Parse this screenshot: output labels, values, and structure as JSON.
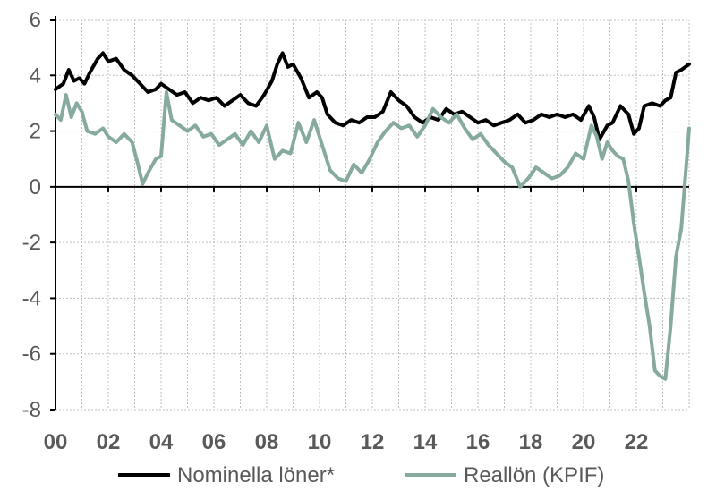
{
  "chart_data": {
    "type": "line",
    "x_tick_labels": [
      "00",
      "02",
      "04",
      "06",
      "08",
      "10",
      "12",
      "14",
      "16",
      "18",
      "20",
      "22"
    ],
    "y_tick_labels": [
      "6",
      "4",
      "2",
      "0",
      "-2",
      "-4",
      "-6",
      "-8"
    ],
    "ylim": [
      -8,
      6
    ],
    "xlim": [
      2000,
      2024
    ],
    "grid": true,
    "legend_position": "bottom",
    "series": [
      {
        "name": "Nominella löner*",
        "color": "#000000",
        "points": [
          [
            2000.0,
            3.5
          ],
          [
            2000.3,
            3.7
          ],
          [
            2000.5,
            4.2
          ],
          [
            2000.7,
            3.8
          ],
          [
            2000.9,
            3.9
          ],
          [
            2001.1,
            3.7
          ],
          [
            2001.3,
            4.1
          ],
          [
            2001.6,
            4.6
          ],
          [
            2001.8,
            4.8
          ],
          [
            2002.0,
            4.5
          ],
          [
            2002.3,
            4.6
          ],
          [
            2002.6,
            4.2
          ],
          [
            2002.9,
            4.0
          ],
          [
            2003.2,
            3.7
          ],
          [
            2003.5,
            3.4
          ],
          [
            2003.8,
            3.5
          ],
          [
            2004.0,
            3.7
          ],
          [
            2004.3,
            3.5
          ],
          [
            2004.6,
            3.3
          ],
          [
            2004.9,
            3.4
          ],
          [
            2005.2,
            3.0
          ],
          [
            2005.5,
            3.2
          ],
          [
            2005.8,
            3.1
          ],
          [
            2006.1,
            3.2
          ],
          [
            2006.4,
            2.9
          ],
          [
            2006.7,
            3.1
          ],
          [
            2007.0,
            3.3
          ],
          [
            2007.3,
            3.0
          ],
          [
            2007.6,
            2.9
          ],
          [
            2007.9,
            3.3
          ],
          [
            2008.2,
            3.8
          ],
          [
            2008.4,
            4.4
          ],
          [
            2008.6,
            4.8
          ],
          [
            2008.8,
            4.3
          ],
          [
            2009.0,
            4.4
          ],
          [
            2009.3,
            3.9
          ],
          [
            2009.6,
            3.2
          ],
          [
            2009.9,
            3.4
          ],
          [
            2010.1,
            3.2
          ],
          [
            2010.3,
            2.6
          ],
          [
            2010.6,
            2.3
          ],
          [
            2010.9,
            2.2
          ],
          [
            2011.2,
            2.4
          ],
          [
            2011.5,
            2.3
          ],
          [
            2011.8,
            2.5
          ],
          [
            2012.1,
            2.5
          ],
          [
            2012.4,
            2.7
          ],
          [
            2012.7,
            3.4
          ],
          [
            2013.0,
            3.1
          ],
          [
            2013.3,
            2.9
          ],
          [
            2013.6,
            2.5
          ],
          [
            2013.9,
            2.3
          ],
          [
            2014.2,
            2.5
          ],
          [
            2014.5,
            2.4
          ],
          [
            2014.8,
            2.8
          ],
          [
            2015.1,
            2.6
          ],
          [
            2015.4,
            2.7
          ],
          [
            2015.7,
            2.5
          ],
          [
            2016.0,
            2.3
          ],
          [
            2016.3,
            2.4
          ],
          [
            2016.6,
            2.2
          ],
          [
            2016.9,
            2.3
          ],
          [
            2017.2,
            2.4
          ],
          [
            2017.5,
            2.6
          ],
          [
            2017.8,
            2.3
          ],
          [
            2018.1,
            2.4
          ],
          [
            2018.4,
            2.6
          ],
          [
            2018.7,
            2.5
          ],
          [
            2019.0,
            2.6
          ],
          [
            2019.3,
            2.5
          ],
          [
            2019.6,
            2.6
          ],
          [
            2019.9,
            2.4
          ],
          [
            2020.2,
            2.9
          ],
          [
            2020.4,
            2.5
          ],
          [
            2020.6,
            1.7
          ],
          [
            2020.9,
            2.2
          ],
          [
            2021.1,
            2.3
          ],
          [
            2021.4,
            2.9
          ],
          [
            2021.7,
            2.6
          ],
          [
            2021.9,
            1.9
          ],
          [
            2022.1,
            2.1
          ],
          [
            2022.3,
            2.9
          ],
          [
            2022.6,
            3.0
          ],
          [
            2022.9,
            2.9
          ],
          [
            2023.1,
            3.1
          ],
          [
            2023.3,
            3.2
          ],
          [
            2023.5,
            4.1
          ],
          [
            2023.7,
            4.2
          ],
          [
            2024.0,
            4.4
          ]
        ]
      },
      {
        "name": "Reallön (KPIF)",
        "color": "#86a9a0",
        "points": [
          [
            2000.0,
            2.6
          ],
          [
            2000.2,
            2.4
          ],
          [
            2000.4,
            3.3
          ],
          [
            2000.6,
            2.5
          ],
          [
            2000.8,
            3.0
          ],
          [
            2001.0,
            2.7
          ],
          [
            2001.2,
            2.0
          ],
          [
            2001.5,
            1.9
          ],
          [
            2001.8,
            2.1
          ],
          [
            2002.0,
            1.8
          ],
          [
            2002.3,
            1.6
          ],
          [
            2002.6,
            1.9
          ],
          [
            2002.9,
            1.6
          ],
          [
            2003.1,
            0.9
          ],
          [
            2003.3,
            0.1
          ],
          [
            2003.5,
            0.5
          ],
          [
            2003.8,
            1.0
          ],
          [
            2004.0,
            1.1
          ],
          [
            2004.2,
            3.4
          ],
          [
            2004.4,
            2.4
          ],
          [
            2004.7,
            2.2
          ],
          [
            2005.0,
            2.0
          ],
          [
            2005.3,
            2.2
          ],
          [
            2005.6,
            1.8
          ],
          [
            2005.9,
            1.9
          ],
          [
            2006.2,
            1.5
          ],
          [
            2006.5,
            1.7
          ],
          [
            2006.8,
            1.9
          ],
          [
            2007.1,
            1.5
          ],
          [
            2007.4,
            2.0
          ],
          [
            2007.7,
            1.6
          ],
          [
            2008.0,
            2.2
          ],
          [
            2008.3,
            1.0
          ],
          [
            2008.6,
            1.3
          ],
          [
            2008.9,
            1.2
          ],
          [
            2009.2,
            2.3
          ],
          [
            2009.5,
            1.6
          ],
          [
            2009.8,
            2.4
          ],
          [
            2010.1,
            1.5
          ],
          [
            2010.4,
            0.6
          ],
          [
            2010.7,
            0.3
          ],
          [
            2011.0,
            0.2
          ],
          [
            2011.3,
            0.8
          ],
          [
            2011.6,
            0.5
          ],
          [
            2011.9,
            1.0
          ],
          [
            2012.2,
            1.6
          ],
          [
            2012.5,
            2.0
          ],
          [
            2012.8,
            2.3
          ],
          [
            2013.1,
            2.1
          ],
          [
            2013.4,
            2.2
          ],
          [
            2013.7,
            1.8
          ],
          [
            2014.0,
            2.2
          ],
          [
            2014.3,
            2.8
          ],
          [
            2014.6,
            2.5
          ],
          [
            2014.9,
            2.3
          ],
          [
            2015.2,
            2.6
          ],
          [
            2015.5,
            2.1
          ],
          [
            2015.8,
            1.7
          ],
          [
            2016.1,
            1.9
          ],
          [
            2016.4,
            1.5
          ],
          [
            2016.7,
            1.2
          ],
          [
            2017.0,
            0.9
          ],
          [
            2017.3,
            0.7
          ],
          [
            2017.6,
            0.0
          ],
          [
            2017.9,
            0.3
          ],
          [
            2018.2,
            0.7
          ],
          [
            2018.5,
            0.5
          ],
          [
            2018.8,
            0.3
          ],
          [
            2019.1,
            0.4
          ],
          [
            2019.4,
            0.7
          ],
          [
            2019.7,
            1.2
          ],
          [
            2020.0,
            1.0
          ],
          [
            2020.3,
            2.2
          ],
          [
            2020.5,
            1.8
          ],
          [
            2020.7,
            1.0
          ],
          [
            2020.9,
            1.6
          ],
          [
            2021.1,
            1.3
          ],
          [
            2021.3,
            1.1
          ],
          [
            2021.5,
            1.0
          ],
          [
            2021.7,
            0.2
          ],
          [
            2021.9,
            -1.3
          ],
          [
            2022.1,
            -2.5
          ],
          [
            2022.3,
            -3.8
          ],
          [
            2022.5,
            -5.0
          ],
          [
            2022.7,
            -6.6
          ],
          [
            2022.9,
            -6.8
          ],
          [
            2023.1,
            -6.9
          ],
          [
            2023.3,
            -5.0
          ],
          [
            2023.5,
            -2.5
          ],
          [
            2023.7,
            -1.5
          ],
          [
            2023.85,
            0.3
          ],
          [
            2024.0,
            2.1
          ]
        ]
      }
    ]
  }
}
